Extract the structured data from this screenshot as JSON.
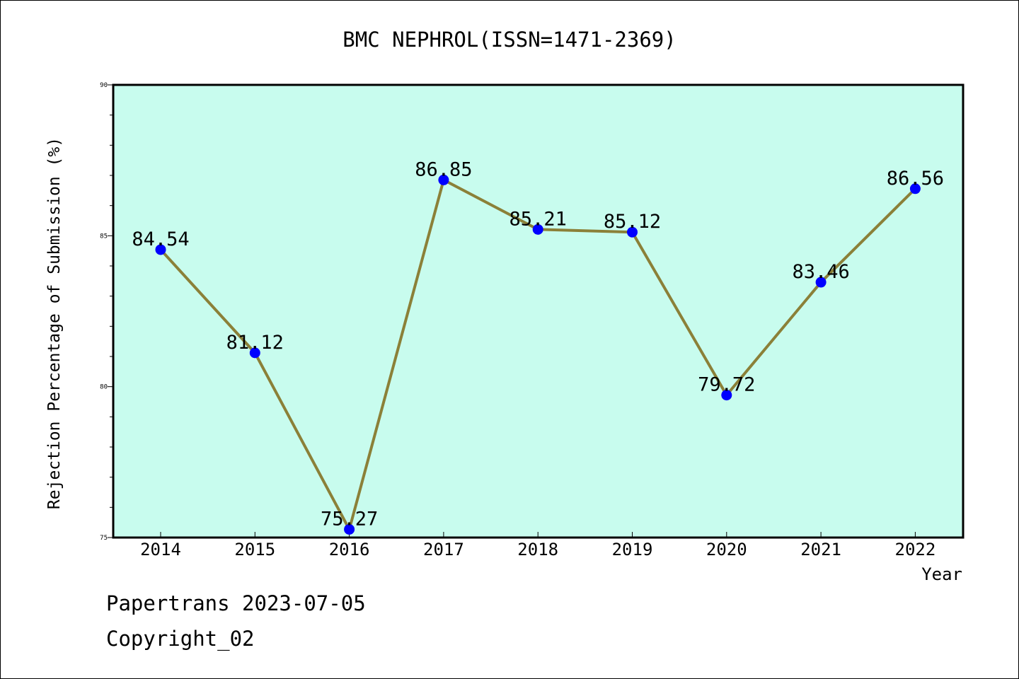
{
  "chart_data": {
    "type": "line",
    "title": "BMC NEPHROL(ISSN=1471-2369)",
    "xlabel": "Year",
    "ylabel": "Rejection Percentage of Submission (%)",
    "categories": [
      "2014",
      "2015",
      "2016",
      "2017",
      "2018",
      "2019",
      "2020",
      "2021",
      "2022"
    ],
    "series": [
      {
        "values": [
          84.54,
          81.12,
          75.27,
          86.85,
          85.21,
          85.12,
          79.72,
          83.46,
          86.56
        ],
        "labels": [
          "84.54",
          "81.12",
          "75.27",
          "86.85",
          "85.21",
          "85.12",
          "79.72",
          "83.46",
          "86.56"
        ]
      }
    ],
    "ylim": [
      75,
      90
    ],
    "yticks": [
      "75",
      "80",
      "85",
      "90"
    ],
    "grid": false,
    "colors": {
      "plot_background": "#c8fcee",
      "line": "#8b8038",
      "marker": "#0000ff"
    }
  },
  "footer": {
    "line1": "Papertrans 2023-07-05",
    "line2": "Copyright_02"
  }
}
